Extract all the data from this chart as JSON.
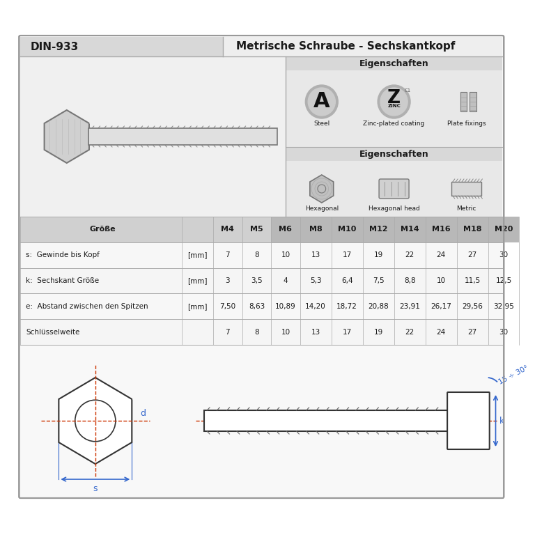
{
  "title_left": "DIN-933",
  "title_right": "Metrische Schraube - Sechskantkopf",
  "eigenschaften_label1": "Eigenschaften",
  "eigenschaften_label2": "Eigenschaften",
  "prop_labels1": [
    "Steel",
    "Zinc-plated coating",
    "Plate fixings"
  ],
  "prop_labels2": [
    "Hexagonal",
    "Hexagonal head",
    "Metric"
  ],
  "col_headers": [
    "Öße",
    "",
    "M4",
    "M5",
    "M6",
    "M8",
    "M10",
    "M12",
    "M14",
    "M16",
    "M18",
    "M20"
  ],
  "table_rows": [
    {
      "label": "s:  Gewinde bis Kopf",
      "unit": "[mm]",
      "vals": [
        "7",
        "8",
        "10",
        "13",
        "17",
        "19",
        "22",
        "24",
        "27",
        "30"
      ]
    },
    {
      "label": "k:  Sechskant Größe",
      "unit": "[mm]",
      "vals": [
        "3",
        "3,5",
        "4",
        "5,3",
        "6,4",
        "7,5",
        "8,8",
        "10",
        "11,5",
        "12,5"
      ]
    },
    {
      "label": "e:  Abstand zwischen den Spitzen",
      "unit": "[mm]",
      "vals": [
        "7,50",
        "8,63",
        "10,89",
        "14,20",
        "18,72",
        "20,88",
        "23,91",
        "26,17",
        "29,56",
        "32,95"
      ]
    },
    {
      "label": "Schlüsselweite",
      "unit": "",
      "vals": [
        "7",
        "8",
        "10",
        "13",
        "17",
        "19",
        "22",
        "24",
        "27",
        "30"
      ]
    }
  ],
  "col_header_label": "Größe",
  "bg_color": "#f5f5f5",
  "header_bg_left": "#d8d8d8",
  "header_bg_right": "#eeeeee",
  "eig_bg": "#e8e8e8",
  "eig_label_bg": "#d8d8d8",
  "table_hdr_bg": "#d0d0d0",
  "table_hdr_dark": "#b8b8b8",
  "row_alt": "#f5f5f5",
  "draw_bg": "#f8f8f8",
  "border_color": "#aaaaaa",
  "text_dark": "#1a1a1a",
  "text_blue": "#3366cc",
  "red_color": "#cc3300"
}
